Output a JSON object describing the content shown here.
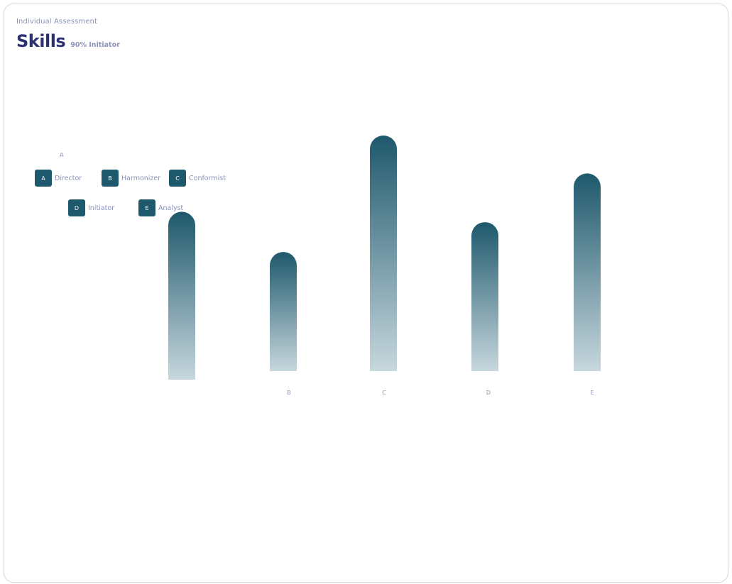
{
  "header": {
    "subtitle": "Individual Assessment",
    "title": "Skills",
    "meta": "90% Initiator"
  },
  "legend": {
    "top_label": "A",
    "items": [
      {
        "key": "A",
        "label": "Director"
      },
      {
        "key": "B",
        "label": "Harmonizer"
      },
      {
        "key": "C",
        "label": "Conformist"
      },
      {
        "key": "D",
        "label": "Initiator"
      },
      {
        "key": "E",
        "label": "Analyst"
      }
    ]
  },
  "chart_data": {
    "type": "bar",
    "categories": [
      "A",
      "B",
      "C",
      "D",
      "E"
    ],
    "visible_category_labels": [
      "",
      "B",
      "C",
      "D",
      "E"
    ],
    "values": [
      62,
      44,
      87,
      55,
      73
    ],
    "bar_color_top": "#1e586c",
    "bar_color_bottom": "#c7d7dd",
    "grid": false,
    "legend_position": "top-left"
  }
}
